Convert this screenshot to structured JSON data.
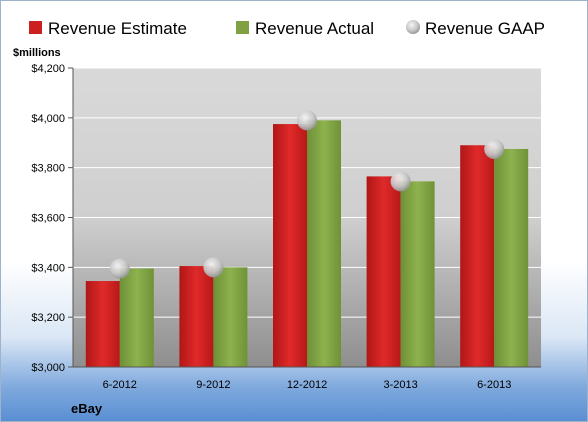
{
  "chart_data": {
    "type": "bar",
    "title": "",
    "ylabel": "$millions",
    "xlabel": "",
    "company": "eBay",
    "categories": [
      "6-2012",
      "9-2012",
      "12-2012",
      "3-2013",
      "6-2013"
    ],
    "series": [
      {
        "name": "Revenue Estimate",
        "type": "bar",
        "color": "#cc1f1f",
        "values": [
          3345,
          3405,
          3975,
          3765,
          3890
        ]
      },
      {
        "name": "Revenue Actual",
        "type": "bar",
        "color": "#7fa043",
        "values": [
          3395,
          3400,
          3990,
          3745,
          3875
        ]
      },
      {
        "name": "Revenue GAAP",
        "type": "marker",
        "color": "#c9c9c9",
        "values": [
          3395,
          3400,
          3990,
          3745,
          3875
        ]
      }
    ],
    "ylim": [
      3000,
      4200
    ],
    "yticks": [
      3000,
      3200,
      3400,
      3600,
      3800,
      4000,
      4200
    ],
    "ytick_labels": [
      "$3,000",
      "$3,200",
      "$3,400",
      "$3,600",
      "$3,800",
      "$4,000",
      "$4,200"
    ],
    "grid": true,
    "legend_position": "top"
  }
}
